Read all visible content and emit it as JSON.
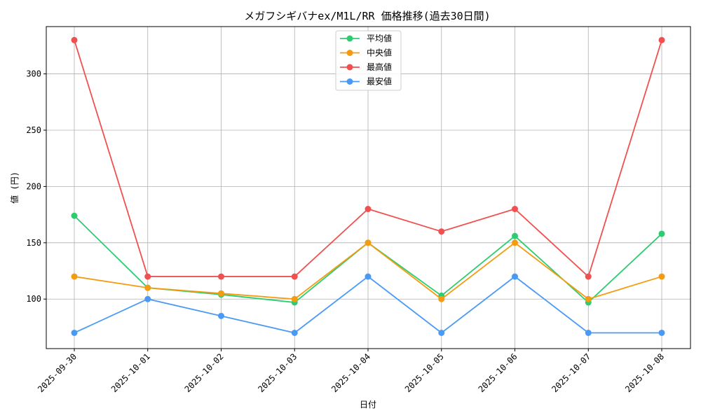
{
  "chart_data": {
    "type": "line",
    "title": "メガフシギバナex/M1L/RR 価格推移(過去30日間)",
    "xlabel": "日付",
    "ylabel": "値 (円)",
    "categories": [
      "2025-09-30",
      "2025-10-01",
      "2025-10-02",
      "2025-10-03",
      "2025-10-04",
      "2025-10-05",
      "2025-10-06",
      "2025-10-07",
      "2025-10-08"
    ],
    "ylim": [
      56,
      342
    ],
    "yticks": [
      100,
      150,
      200,
      250,
      300
    ],
    "grid": true,
    "legend_position": "top-center",
    "series": [
      {
        "name": "平均値",
        "color": "#2ecc71",
        "values": [
          174,
          110,
          104,
          97,
          150,
          103,
          156,
          97,
          158
        ]
      },
      {
        "name": "中央値",
        "color": "#f39c12",
        "values": [
          120,
          110,
          105,
          100,
          150,
          100,
          150,
          100,
          120
        ]
      },
      {
        "name": "最高値",
        "color": "#f05050",
        "values": [
          330,
          120,
          120,
          120,
          180,
          160,
          180,
          120,
          330
        ]
      },
      {
        "name": "最安値",
        "color": "#4a9af5",
        "values": [
          70,
          100,
          85,
          70,
          120,
          70,
          120,
          70,
          70
        ]
      }
    ]
  }
}
